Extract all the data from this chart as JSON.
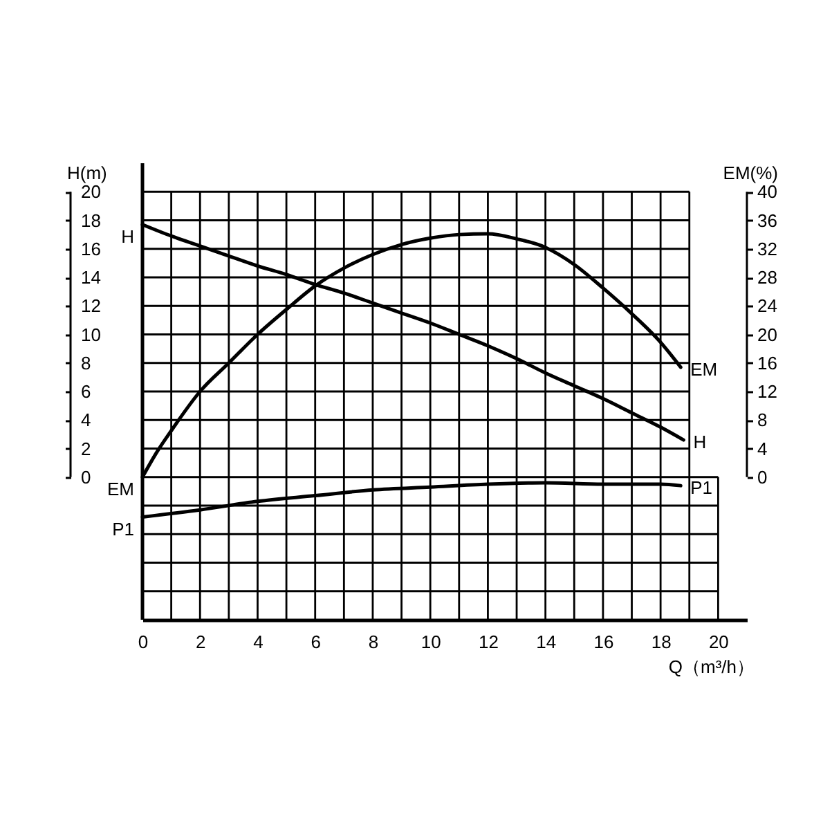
{
  "chart_data": {
    "type": "line",
    "xlabel": "Q（m³/h）",
    "ylabel": "H(m)",
    "y2label": "EM(%)",
    "xlim": [
      0,
      21
    ],
    "xticks": [
      0,
      {
        "value": 1,
        "label": null
      },
      2,
      {
        "value": 3,
        "label": null
      },
      4,
      {
        "value": 5,
        "label": null
      },
      6,
      {
        "value": 7,
        "label": null
      },
      8,
      {
        "value": 9,
        "label": null
      },
      10,
      {
        "value": 11,
        "label": null
      },
      12,
      {
        "value": 13,
        "label": null
      },
      14,
      {
        "value": 15,
        "label": null
      },
      16,
      {
        "value": 17,
        "label": null
      },
      18,
      {
        "value": 19,
        "label": null
      },
      20
    ],
    "ylim": [
      -10,
      22
    ],
    "yticks": [
      {
        "value": -8,
        "label": null
      },
      {
        "value": -6,
        "label": null
      },
      {
        "value": -4,
        "label": null
      },
      {
        "value": -2,
        "label": null
      },
      0,
      2,
      4,
      6,
      8,
      10,
      12,
      14,
      16,
      18,
      20
    ],
    "y2lim": [
      -20,
      44
    ],
    "y2ticks": [
      0,
      4,
      8,
      12,
      16,
      20,
      24,
      28,
      32,
      36,
      40
    ],
    "grid": true,
    "line_style": "solid",
    "series": [
      {
        "name": "H",
        "color": "#000000",
        "x": [
          0,
          1,
          2,
          3,
          4,
          5,
          6,
          7,
          8,
          9,
          10,
          11,
          12,
          13,
          14,
          15,
          16,
          17,
          18,
          18.8
        ],
        "values": [
          17.7,
          16.9,
          16.2,
          15.5,
          14.8,
          14.2,
          13.5,
          12.9,
          12.2,
          11.5,
          10.8,
          10.0,
          9.2,
          8.3,
          7.3,
          6.4,
          5.5,
          4.5,
          3.5,
          2.6
        ]
      },
      {
        "name": "EM",
        "color": "#000000",
        "axis": "y2",
        "x": [
          0,
          0.5,
          1,
          2,
          3,
          4,
          5,
          6,
          7,
          8,
          9,
          10,
          11,
          12,
          13,
          14,
          15,
          16,
          17,
          18,
          18.7
        ],
        "values": [
          0,
          3.5,
          6.5,
          12,
          16,
          20,
          23.5,
          26.8,
          29.3,
          31.2,
          32.6,
          33.5,
          34,
          34.1,
          33.4,
          32.2,
          29.8,
          26.5,
          22.9,
          18.9,
          15.4
        ]
      },
      {
        "name": "P1",
        "color": "#000000",
        "x": [
          0,
          2,
          4,
          6,
          8,
          10,
          12,
          14,
          16,
          18,
          18.7
        ],
        "values": [
          -2.8,
          -2.3,
          -1.7,
          -1.3,
          -0.9,
          -0.7,
          -0.5,
          -0.4,
          -0.5,
          -0.5,
          -0.6
        ]
      }
    ]
  }
}
